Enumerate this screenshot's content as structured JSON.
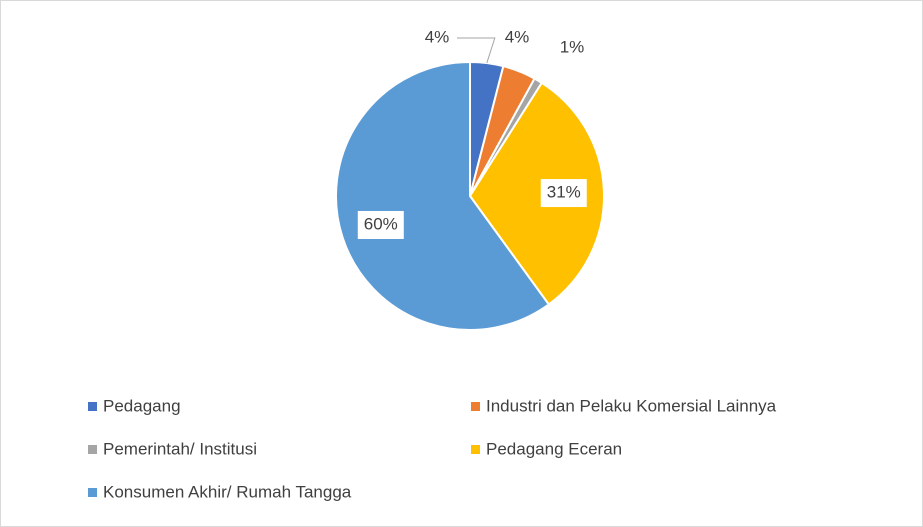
{
  "chart_data": {
    "type": "pie",
    "categories": [
      "Pedagang",
      "Industri dan Pelaku Komersial Lainnya",
      "Pemerintah/ Institusi",
      "Pedagang Eceran",
      "Konsumen Akhir/ Rumah Tangga"
    ],
    "values": [
      4,
      4,
      1,
      31,
      60
    ],
    "value_labels": [
      "4%",
      "4%",
      "1%",
      "31%",
      "60%"
    ],
    "colors": [
      "#4472c4",
      "#ed7d31",
      "#a5a5a5",
      "#ffc000",
      "#5b9bd5"
    ],
    "legend": "bottom"
  }
}
